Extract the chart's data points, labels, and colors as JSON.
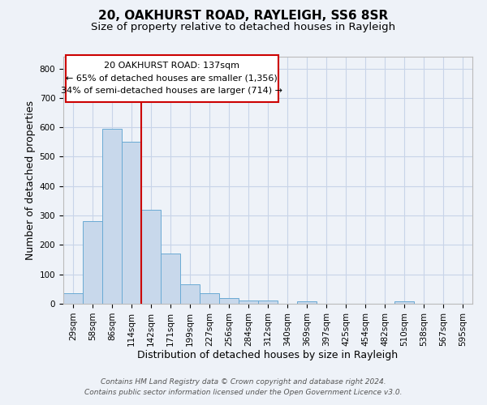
{
  "title": "20, OAKHURST ROAD, RAYLEIGH, SS6 8SR",
  "subtitle": "Size of property relative to detached houses in Rayleigh",
  "xlabel": "Distribution of detached houses by size in Rayleigh",
  "ylabel": "Number of detached properties",
  "categories": [
    "29sqm",
    "58sqm",
    "86sqm",
    "114sqm",
    "142sqm",
    "171sqm",
    "199sqm",
    "227sqm",
    "256sqm",
    "284sqm",
    "312sqm",
    "340sqm",
    "369sqm",
    "397sqm",
    "425sqm",
    "454sqm",
    "482sqm",
    "510sqm",
    "538sqm",
    "567sqm",
    "595sqm"
  ],
  "values": [
    35,
    280,
    595,
    550,
    320,
    170,
    65,
    35,
    18,
    10,
    10,
    0,
    8,
    0,
    0,
    0,
    0,
    8,
    0,
    0,
    0
  ],
  "bar_color": "#c8d8eb",
  "bar_edge_color": "#6aaad4",
  "grid_color": "#c8d4e8",
  "background_color": "#eef2f8",
  "annotation_box_color": "#ffffff",
  "annotation_border_color": "#cc0000",
  "vline_color": "#cc0000",
  "vline_x": 3.5,
  "annotation_text_line1": "20 OAKHURST ROAD: 137sqm",
  "annotation_text_line2": "← 65% of detached houses are smaller (1,356)",
  "annotation_text_line3": "34% of semi-detached houses are larger (714) →",
  "footer_line1": "Contains HM Land Registry data © Crown copyright and database right 2024.",
  "footer_line2": "Contains public sector information licensed under the Open Government Licence v3.0.",
  "ylim": [
    0,
    840
  ],
  "yticks": [
    0,
    100,
    200,
    300,
    400,
    500,
    600,
    700,
    800
  ],
  "title_fontsize": 11,
  "subtitle_fontsize": 9.5,
  "axis_label_fontsize": 9,
  "tick_fontsize": 7.5,
  "annotation_fontsize": 8,
  "footer_fontsize": 6.5
}
